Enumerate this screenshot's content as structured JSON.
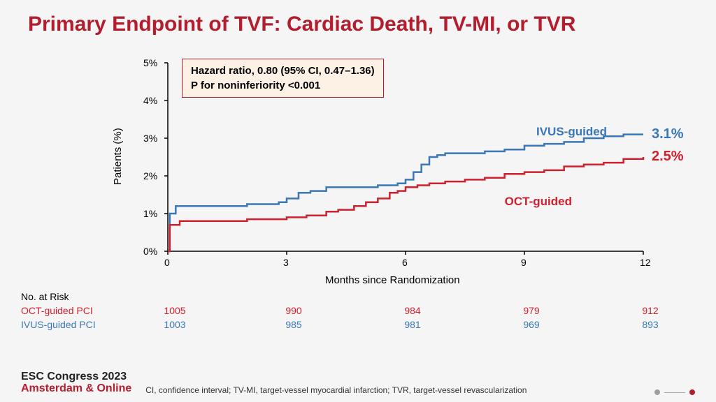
{
  "title": "Primary Endpoint of TVF: Cardiac Death, TV-MI, or TVR",
  "stat_box": {
    "line1": "Hazard ratio, 0.80 (95% CI, 0.47–1.36)",
    "line2": "P for noninferiority <0.001",
    "bg": "#fdf1e6",
    "border": "#b31e2f"
  },
  "chart": {
    "type": "kaplan-meier-step",
    "xlim": [
      0,
      12
    ],
    "ylim": [
      0,
      5
    ],
    "xticks": [
      0,
      3,
      6,
      9,
      12
    ],
    "yticks": [
      0,
      1,
      2,
      3,
      4,
      5
    ],
    "ytick_suffix": "%",
    "xlabel": "Months since Randomization",
    "ylabel": "Patients (%)",
    "axis_color": "#000000",
    "tick_color": "#000000",
    "line_width": 2.5,
    "series": [
      {
        "name": "IVUS-guided",
        "color": "#3b77b6",
        "end_label": "3.1%",
        "points": [
          [
            0,
            0
          ],
          [
            0.05,
            1.0
          ],
          [
            0.2,
            1.2
          ],
          [
            1.5,
            1.2
          ],
          [
            2.0,
            1.25
          ],
          [
            2.8,
            1.3
          ],
          [
            3.0,
            1.4
          ],
          [
            3.3,
            1.55
          ],
          [
            3.6,
            1.6
          ],
          [
            4.0,
            1.7
          ],
          [
            4.5,
            1.7
          ],
          [
            5.3,
            1.75
          ],
          [
            5.8,
            1.8
          ],
          [
            6.0,
            1.9
          ],
          [
            6.2,
            2.1
          ],
          [
            6.4,
            2.3
          ],
          [
            6.6,
            2.5
          ],
          [
            6.8,
            2.55
          ],
          [
            7.0,
            2.6
          ],
          [
            8.0,
            2.65
          ],
          [
            8.5,
            2.7
          ],
          [
            9.0,
            2.8
          ],
          [
            9.5,
            2.85
          ],
          [
            10.0,
            2.9
          ],
          [
            10.5,
            3.0
          ],
          [
            11.0,
            3.05
          ],
          [
            11.5,
            3.1
          ],
          [
            12.0,
            3.1
          ]
        ]
      },
      {
        "name": "OCT-guided",
        "color": "#d0202e",
        "end_label": "2.5%",
        "points": [
          [
            0,
            0
          ],
          [
            0.05,
            0.7
          ],
          [
            0.3,
            0.8
          ],
          [
            1.5,
            0.8
          ],
          [
            2.0,
            0.85
          ],
          [
            2.7,
            0.85
          ],
          [
            3.0,
            0.9
          ],
          [
            3.5,
            0.95
          ],
          [
            4.0,
            1.05
          ],
          [
            4.3,
            1.1
          ],
          [
            4.7,
            1.2
          ],
          [
            5.0,
            1.3
          ],
          [
            5.3,
            1.4
          ],
          [
            5.6,
            1.55
          ],
          [
            5.8,
            1.6
          ],
          [
            6.0,
            1.7
          ],
          [
            6.3,
            1.75
          ],
          [
            6.6,
            1.8
          ],
          [
            7.0,
            1.85
          ],
          [
            7.5,
            1.9
          ],
          [
            8.0,
            1.95
          ],
          [
            8.5,
            2.05
          ],
          [
            9.0,
            2.1
          ],
          [
            9.5,
            2.15
          ],
          [
            10.0,
            2.25
          ],
          [
            10.5,
            2.3
          ],
          [
            11.0,
            2.35
          ],
          [
            11.5,
            2.45
          ],
          [
            12.0,
            2.5
          ]
        ]
      }
    ],
    "curve_labels": [
      {
        "text": "IVUS-guided",
        "x": 9.3,
        "y": 3.35,
        "color": "#3b77b6"
      },
      {
        "text": "OCT-guided",
        "x": 8.5,
        "y": 1.5,
        "color": "#d0202e"
      }
    ]
  },
  "risk_table": {
    "header": "No. at Risk",
    "rows": [
      {
        "label": "OCT-guided PCI",
        "color": "#d0202e",
        "values": [
          "1005",
          "990",
          "984",
          "979",
          "912"
        ]
      },
      {
        "label": "IVUS-guided PCI",
        "color": "#3b77b6",
        "values": [
          "1003",
          "985",
          "981",
          "969",
          "893"
        ]
      }
    ]
  },
  "footer": {
    "congress_top": "ESC Congress 2023",
    "congress_bottom": "Amsterdam & Online",
    "abbrev": "CI, confidence interval; TV-MI, target-vessel myocardial infarction; TVR, target-vessel revascularization",
    "dot_gray": "#9e9e9e",
    "dot_red": "#b31e2f"
  }
}
